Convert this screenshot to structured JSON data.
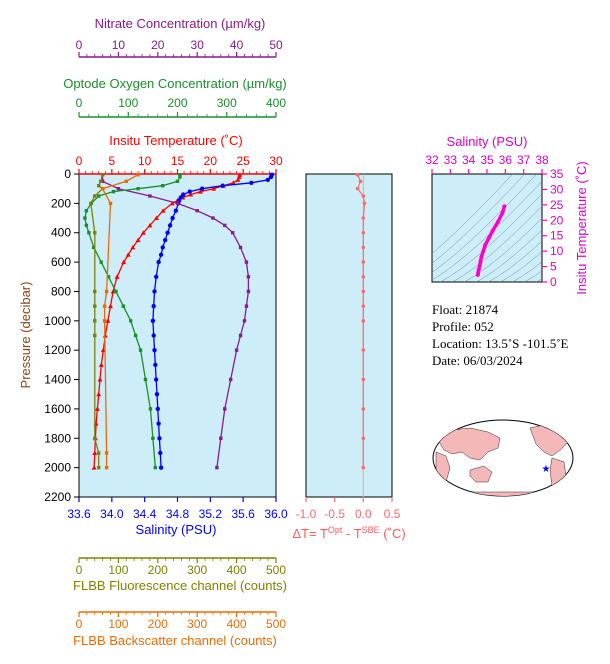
{
  "colors": {
    "nitrate": "#8b1a8b",
    "oxygen": "#1a8f2a",
    "temperature": "#ff0000",
    "salinity": "#0000ff",
    "fluorescence": "#808000",
    "backscatter": "#ee6a00",
    "delta": "#ff6a6a",
    "ts": "#ff00cc",
    "panel_bg": "#cdeef8",
    "map_land": "#f4b8b8",
    "map_ocean": "#ffffff"
  },
  "axes": {
    "nitrate": {
      "label": "Nitrate Concentration (µm/kg)",
      "ticks": [
        "0",
        "10",
        "20",
        "30",
        "40",
        "50"
      ],
      "range": [
        0,
        50
      ]
    },
    "oxygen": {
      "label": "Optode Oxygen Concentration (µm/kg)",
      "ticks": [
        "0",
        "100",
        "200",
        "300",
        "400"
      ],
      "range": [
        0,
        400
      ]
    },
    "temperature": {
      "label": "Insitu Temperature (˚C)",
      "ticks": [
        "0",
        "5",
        "10",
        "15",
        "20",
        "25",
        "30"
      ],
      "range": [
        0,
        30
      ]
    },
    "pressure": {
      "label": "Pressure (decibar)",
      "ticks": [
        "0",
        "200",
        "400",
        "600",
        "800",
        "1000",
        "1200",
        "1400",
        "1600",
        "1800",
        "2000",
        "2200"
      ],
      "range": [
        0,
        2200
      ]
    },
    "salinity": {
      "label": "Salinity (PSU)",
      "ticks": [
        "33.6",
        "34.0",
        "34.4",
        "34.8",
        "35.2",
        "35.6",
        "36.0"
      ],
      "range": [
        33.6,
        36.0
      ]
    },
    "fluorescence": {
      "label": "FLBB Fluorescence channel (counts)",
      "ticks": [
        "0",
        "100",
        "200",
        "300",
        "400",
        "500"
      ],
      "range": [
        0,
        500
      ]
    },
    "backscatter": {
      "label": "FLBB Backscatter channel (counts)",
      "ticks": [
        "0",
        "100",
        "200",
        "300",
        "400",
        "500"
      ],
      "range": [
        0,
        500
      ]
    },
    "delta": {
      "label_prefix": "ΔT= T",
      "label_sup1": "Opt",
      "label_mid": " - T",
      "label_sup2": "SBE",
      "label_suffix": " (˚C)",
      "ticks": [
        "-1.0",
        "-0.5",
        "0.0",
        "0.5"
      ],
      "range": [
        -1.0,
        0.5
      ]
    },
    "ts_salinity": {
      "label": "Salinity (PSU)",
      "ticks": [
        "32",
        "33",
        "34",
        "35",
        "36",
        "37",
        "38"
      ],
      "range": [
        32,
        38
      ]
    },
    "ts_temperature": {
      "label": "Insitu Temperature (˚C)",
      "ticks": [
        "0",
        "5",
        "10",
        "15",
        "20",
        "25",
        "30",
        "35"
      ],
      "range": [
        0,
        35
      ]
    }
  },
  "info": {
    "float": "Float:  21874",
    "profile": "Profile:  052",
    "location": "Location:  13.5˚S  -101.5˚E",
    "date": "Date:  06/03/2024"
  },
  "chart_data": [
    {
      "type": "line",
      "series": [
        {
          "name": "Temperature",
          "color_key": "temperature",
          "pressure": [
            5,
            20,
            40,
            60,
            80,
            100,
            120,
            140,
            160,
            180,
            200,
            250,
            300,
            350,
            400,
            450,
            500,
            550,
            600,
            700,
            800,
            900,
            1000,
            1100,
            1200,
            1300,
            1400,
            1500,
            1600,
            1700,
            1800,
            1900,
            2000
          ],
          "values": [
            24.5,
            24.4,
            24.2,
            23.5,
            22.0,
            20.5,
            18.5,
            17.0,
            15.8,
            15.0,
            14.2,
            12.8,
            11.8,
            10.8,
            9.8,
            9.0,
            8.2,
            7.5,
            6.8,
            5.8,
            5.2,
            4.8,
            4.4,
            4.0,
            3.7,
            3.4,
            3.2,
            3.0,
            2.8,
            2.6,
            2.5,
            2.4,
            2.3
          ]
        },
        {
          "name": "Salinity",
          "color_key": "salinity",
          "pressure": [
            5,
            20,
            40,
            60,
            80,
            100,
            120,
            140,
            160,
            180,
            200,
            250,
            300,
            350,
            400,
            450,
            500,
            550,
            600,
            700,
            800,
            900,
            1000,
            1100,
            1200,
            1300,
            1400,
            1500,
            1600,
            1700,
            1800,
            1900,
            2000
          ],
          "values": [
            35.95,
            35.94,
            35.9,
            35.7,
            35.35,
            35.1,
            34.95,
            34.87,
            34.84,
            34.82,
            34.81,
            34.78,
            34.74,
            34.71,
            34.68,
            34.65,
            34.62,
            34.6,
            34.57,
            34.54,
            34.52,
            34.51,
            34.5,
            34.51,
            34.52,
            34.53,
            34.54,
            34.55,
            34.56,
            34.57,
            34.58,
            34.59,
            34.6
          ]
        },
        {
          "name": "Nitrate",
          "color_key": "nitrate",
          "pressure": [
            5,
            50,
            100,
            150,
            200,
            250,
            300,
            350,
            400,
            500,
            600,
            700,
            800,
            900,
            1000,
            1100,
            1200,
            1400,
            1600,
            1800,
            2000
          ],
          "values": [
            6,
            6,
            10,
            18,
            25,
            30,
            34,
            37,
            39,
            41,
            42.5,
            43,
            43,
            42.5,
            42,
            41,
            40,
            38.5,
            37,
            36,
            35
          ]
        },
        {
          "name": "Oxygen",
          "color_key": "oxygen",
          "pressure": [
            5,
            20,
            50,
            80,
            100,
            120,
            150,
            200,
            250,
            300,
            350,
            400,
            500,
            600,
            700,
            800,
            900,
            1000,
            1100,
            1200,
            1400,
            1600,
            1800,
            2000
          ],
          "values": [
            205,
            205,
            200,
            170,
            120,
            70,
            40,
            25,
            15,
            12,
            15,
            20,
            30,
            45,
            60,
            75,
            90,
            105,
            115,
            125,
            135,
            145,
            150,
            155
          ]
        },
        {
          "name": "Fluorescence",
          "color_key": "fluorescence",
          "pressure": [
            5,
            50,
            80,
            100,
            150,
            200,
            400,
            800,
            900,
            1000,
            1100,
            1800,
            1900,
            2000
          ],
          "values": [
            60,
            55,
            50,
            60,
            40,
            30,
            40,
            40,
            40,
            40,
            40,
            40,
            50,
            50
          ]
        },
        {
          "name": "Backscatter",
          "color_key": "backscatter",
          "pressure": [
            5,
            50,
            100,
            200,
            800,
            900,
            1000,
            1900,
            2000
          ],
          "values": [
            150,
            120,
            60,
            80,
            70,
            65,
            65,
            70,
            70
          ]
        }
      ]
    },
    {
      "type": "scatter",
      "name_key": "delta",
      "pressure": [
        5,
        50,
        100,
        150,
        200,
        300,
        400,
        500,
        600,
        700,
        800,
        900,
        1000,
        1200,
        1400,
        1600,
        1800,
        2000
      ],
      "values": [
        -0.1,
        -0.05,
        -0.1,
        0.0,
        0.02,
        0.0,
        0.0,
        0.0,
        0.0,
        0.0,
        0.0,
        0.0,
        0.0,
        0.0,
        0.0,
        0.0,
        0.0,
        0.0
      ]
    },
    {
      "type": "line",
      "name_key": "ts",
      "salinity": [
        34.5,
        34.52,
        34.55,
        34.6,
        34.65,
        34.7,
        34.8,
        34.9,
        35.1,
        35.3,
        35.6,
        35.85,
        35.95
      ],
      "temperature": [
        2.3,
        3.0,
        4.0,
        5.2,
        6.8,
        8.2,
        10.0,
        12.0,
        14.2,
        16.5,
        19.5,
        22.5,
        24.5
      ]
    }
  ]
}
